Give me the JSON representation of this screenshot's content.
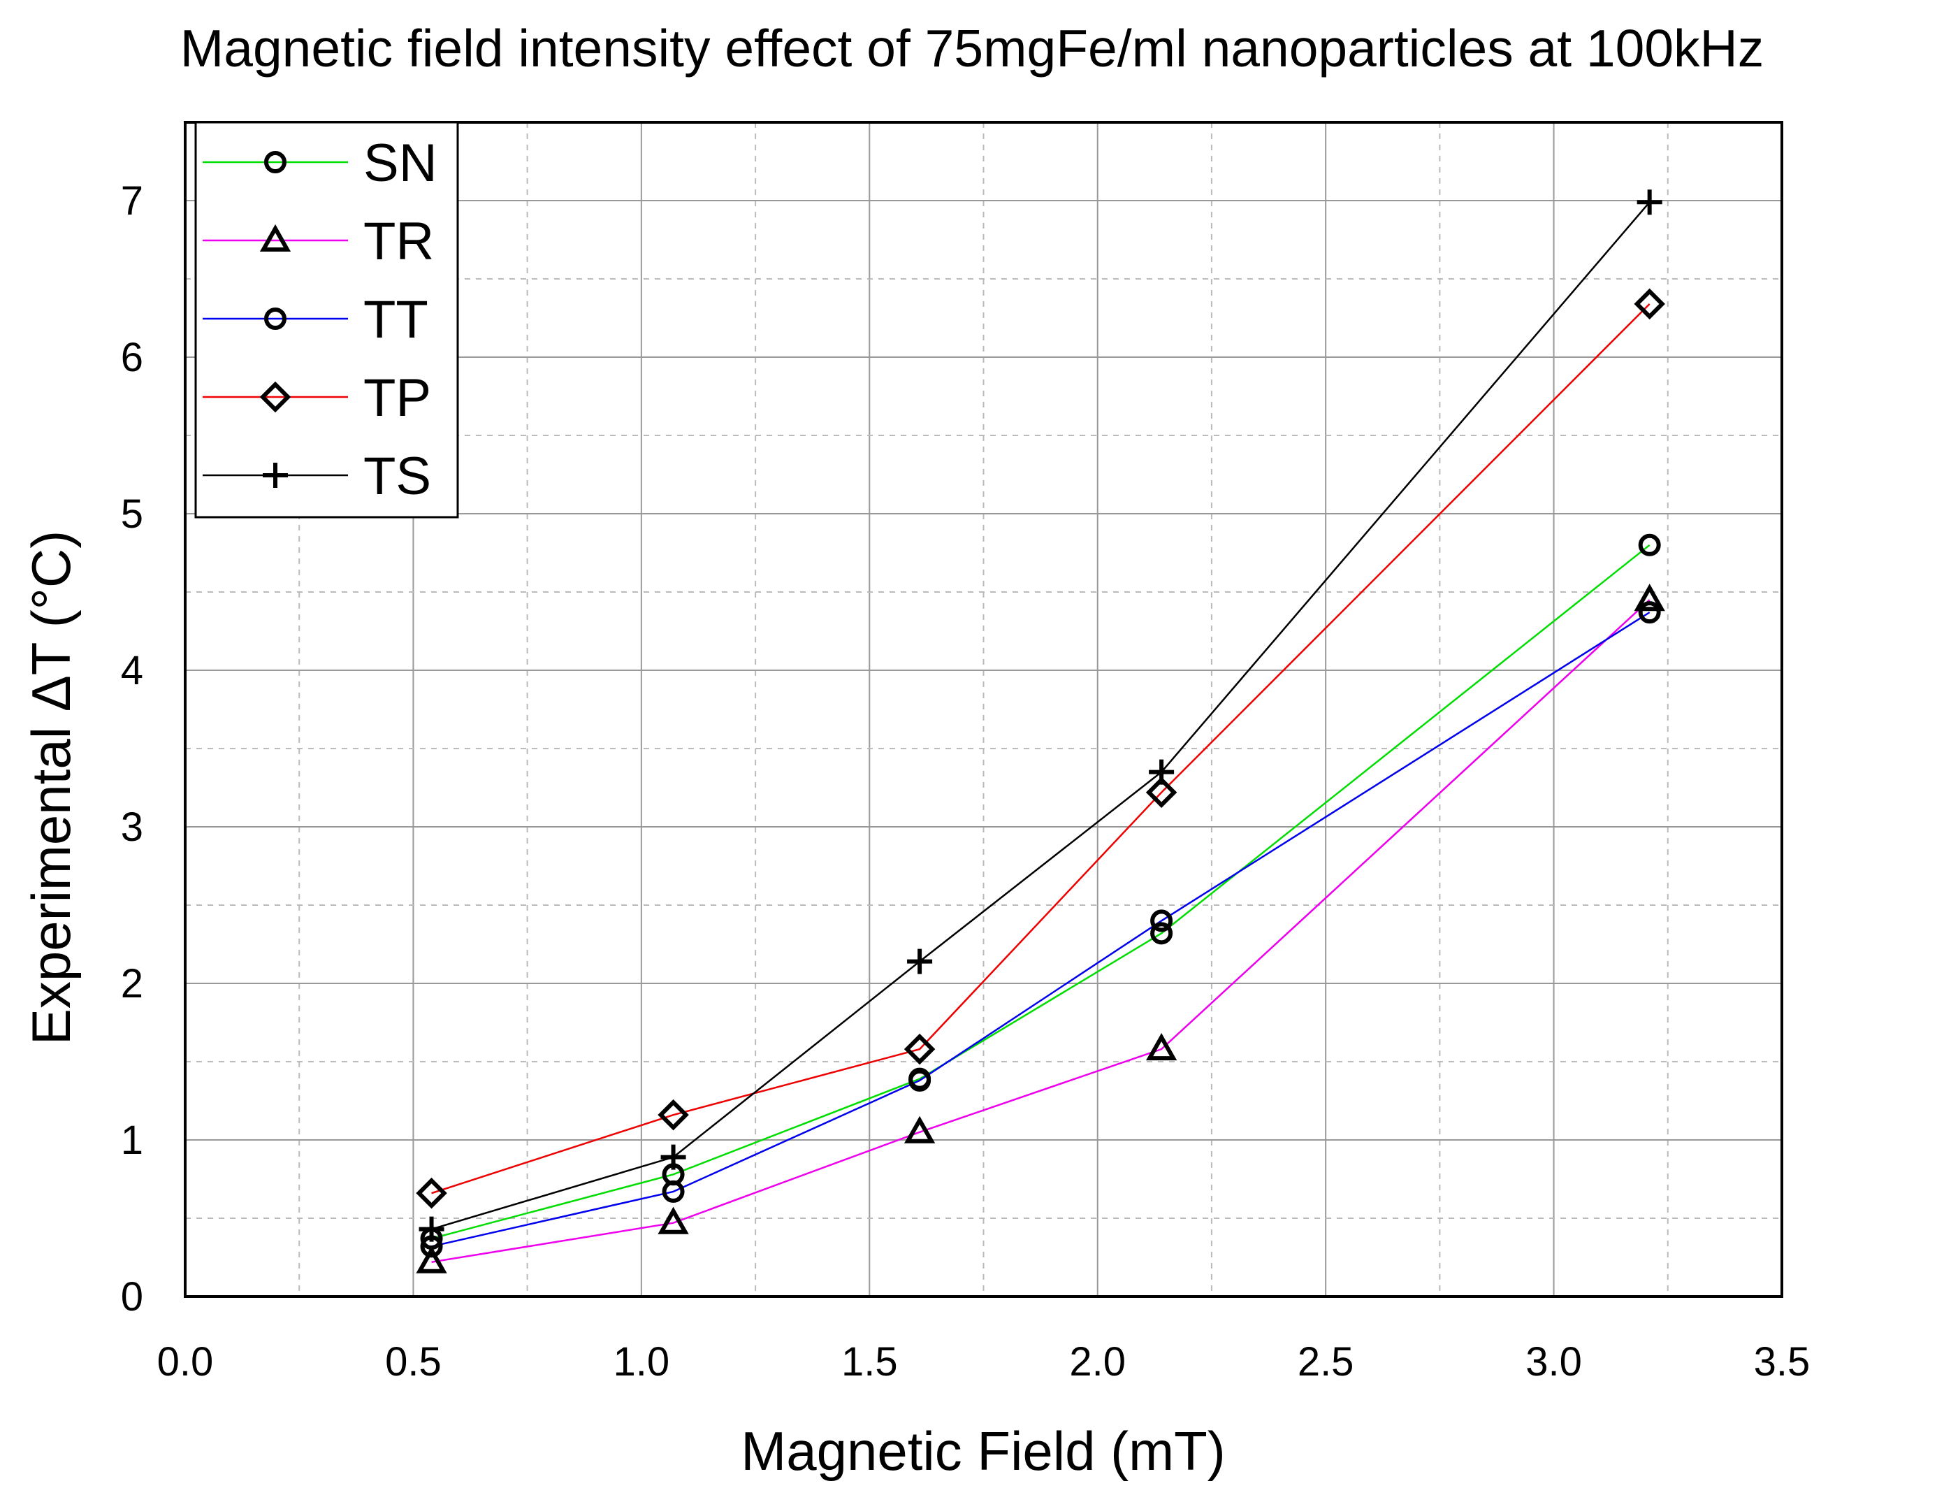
{
  "chart_data": {
    "type": "line",
    "title": "Magnetic field intensity effect of 75mgFe/ml nanoparticles at 100kHz",
    "xlabel": "Magnetic Field (mT)",
    "ylabel": "Experimental ΔT (°C)",
    "xlim": [
      0,
      3.5
    ],
    "ylim": [
      0,
      7.5
    ],
    "x_ticks": [
      0,
      0.5,
      1.0,
      1.5,
      2.0,
      2.5,
      3.0,
      3.5
    ],
    "x_tick_labels": [
      "0.0",
      "0.5",
      "1.0",
      "1.5",
      "2.0",
      "2.5",
      "3.0",
      "3.5"
    ],
    "y_ticks": [
      0,
      1,
      2,
      3,
      4,
      5,
      6,
      7
    ],
    "y_tick_labels": [
      "0",
      "1",
      "2",
      "3",
      "4",
      "5",
      "6",
      "7"
    ],
    "grid": true,
    "legend_position": "top-left",
    "x": [
      0.54,
      1.07,
      1.61,
      2.14,
      3.21
    ],
    "series": [
      {
        "name": "SN",
        "color": "#00dd00",
        "marker": "circle",
        "values": [
          0.37,
          0.78,
          1.39,
          2.32,
          4.8
        ]
      },
      {
        "name": "TR",
        "color": "#ee00ee",
        "marker": "triangle",
        "values": [
          0.22,
          0.47,
          1.05,
          1.58,
          4.45
        ]
      },
      {
        "name": "TT",
        "color": "#0000ee",
        "marker": "circle",
        "values": [
          0.32,
          0.67,
          1.38,
          2.4,
          4.37
        ]
      },
      {
        "name": "TP",
        "color": "#ee0000",
        "marker": "diamond",
        "values": [
          0.66,
          1.16,
          1.58,
          3.22,
          6.34
        ]
      },
      {
        "name": "TS",
        "color": "#000000",
        "marker": "plus",
        "values": [
          0.43,
          0.89,
          2.14,
          3.35,
          6.99
        ]
      }
    ]
  }
}
